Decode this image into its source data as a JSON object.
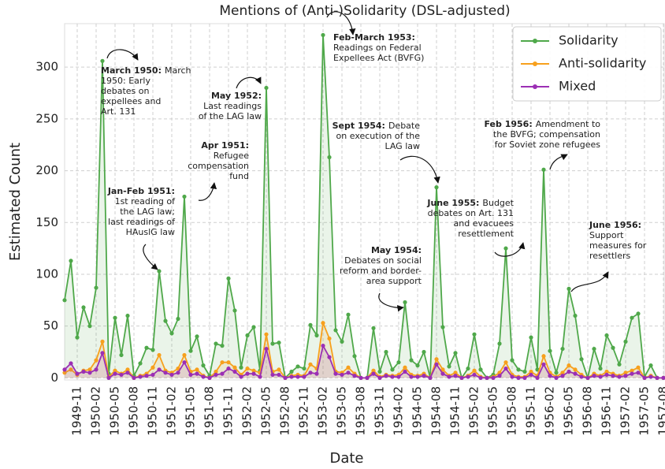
{
  "chart_data": {
    "type": "line",
    "title": "Mentions of (Anti-)Solidarity (DSL-adjusted)",
    "xlabel": "Date",
    "ylabel": "Estimated Count",
    "x": [
      "1949-09",
      "1949-10",
      "1949-11",
      "1949-12",
      "1950-01",
      "1950-02",
      "1950-03",
      "1950-04",
      "1950-05",
      "1950-06",
      "1950-07",
      "1950-08",
      "1950-09",
      "1950-10",
      "1950-11",
      "1950-12",
      "1951-01",
      "1951-02",
      "1951-03",
      "1951-04",
      "1951-05",
      "1951-06",
      "1951-07",
      "1951-08",
      "1951-09",
      "1951-10",
      "1951-11",
      "1951-12",
      "1952-01",
      "1952-02",
      "1952-03",
      "1952-04",
      "1952-05",
      "1952-06",
      "1952-07",
      "1952-08",
      "1952-09",
      "1952-10",
      "1952-11",
      "1952-12",
      "1953-01",
      "1953-02",
      "1953-03",
      "1953-04",
      "1953-05",
      "1953-06",
      "1953-07",
      "1953-08",
      "1953-09",
      "1953-10",
      "1953-11",
      "1953-12",
      "1954-01",
      "1954-02",
      "1954-03",
      "1954-04",
      "1954-05",
      "1954-06",
      "1954-07",
      "1954-08",
      "1954-09",
      "1954-10",
      "1954-11",
      "1954-12",
      "1955-01",
      "1955-02",
      "1955-03",
      "1955-04",
      "1955-05",
      "1955-06",
      "1955-07",
      "1955-08",
      "1955-09",
      "1955-10",
      "1955-11",
      "1955-12",
      "1956-01",
      "1956-02",
      "1956-03",
      "1956-04",
      "1956-05",
      "1956-06",
      "1956-07",
      "1956-08",
      "1956-09",
      "1956-10",
      "1956-11",
      "1956-12",
      "1957-01",
      "1957-02",
      "1957-03",
      "1957-04",
      "1957-05",
      "1957-06",
      "1957-07",
      "1957-08"
    ],
    "series": [
      {
        "name": "Solidarity",
        "color": "#4fa84a",
        "fill": true,
        "values": [
          75,
          113,
          39,
          68,
          50,
          87,
          306,
          4,
          58,
          22,
          60,
          2,
          14,
          29,
          27,
          103,
          55,
          43,
          57,
          175,
          26,
          40,
          12,
          2,
          33,
          31,
          96,
          65,
          10,
          41,
          49,
          7,
          280,
          33,
          34,
          0,
          6,
          11,
          9,
          51,
          41,
          331,
          213,
          46,
          35,
          61,
          21,
          0,
          0,
          48,
          6,
          25,
          8,
          15,
          73,
          17,
          12,
          25,
          0,
          184,
          49,
          11,
          24,
          0,
          9,
          42,
          8,
          0,
          3,
          33,
          125,
          17,
          8,
          6,
          39,
          8,
          201,
          26,
          5,
          28,
          86,
          60,
          18,
          0,
          28,
          9,
          41,
          29,
          13,
          35,
          58,
          62,
          1,
          12,
          0,
          0
        ]
      },
      {
        "name": "Anti-solidarity",
        "color": "#f7a01d",
        "fill": true,
        "values": [
          5,
          8,
          3,
          7,
          8,
          17,
          35,
          1,
          7,
          4,
          8,
          0,
          2,
          4,
          10,
          22,
          7,
          5,
          9,
          22,
          6,
          8,
          2,
          0,
          6,
          15,
          15,
          10,
          3,
          9,
          7,
          5,
          42,
          6,
          8,
          0,
          2,
          3,
          2,
          13,
          9,
          53,
          38,
          6,
          5,
          10,
          4,
          0,
          0,
          7,
          1,
          3,
          2,
          3,
          10,
          3,
          2,
          4,
          0,
          18,
          8,
          2,
          5,
          0,
          2,
          7,
          1,
          0,
          1,
          5,
          15,
          3,
          1,
          1,
          6,
          2,
          21,
          5,
          1,
          5,
          12,
          8,
          3,
          0,
          4,
          2,
          6,
          4,
          2,
          5,
          7,
          10,
          0,
          2,
          0,
          0
        ]
      },
      {
        "name": "Mixed",
        "color": "#9b2fb4",
        "fill": true,
        "values": [
          8,
          14,
          4,
          6,
          5,
          8,
          24,
          0,
          4,
          3,
          5,
          0,
          1,
          2,
          3,
          8,
          5,
          3,
          5,
          15,
          3,
          4,
          1,
          0,
          3,
          4,
          9,
          6,
          1,
          4,
          4,
          1,
          28,
          3,
          3,
          0,
          1,
          1,
          1,
          5,
          4,
          31,
          20,
          4,
          3,
          5,
          2,
          0,
          0,
          4,
          0,
          2,
          1,
          1,
          6,
          1,
          1,
          2,
          0,
          13,
          4,
          1,
          2,
          0,
          1,
          3,
          0,
          0,
          0,
          2,
          9,
          1,
          0,
          0,
          3,
          0,
          13,
          2,
          0,
          2,
          6,
          4,
          1,
          0,
          2,
          1,
          3,
          2,
          1,
          2,
          4,
          5,
          0,
          1,
          0,
          0
        ]
      }
    ],
    "xlim": [
      "1949-09",
      "1957-08"
    ],
    "xticks": [
      "1949-11",
      "1950-02",
      "1950-05",
      "1950-08",
      "1950-11",
      "1951-02",
      "1951-05",
      "1951-08",
      "1951-11",
      "1952-02",
      "1952-05",
      "1952-08",
      "1952-11",
      "1953-02",
      "1953-05",
      "1953-08",
      "1953-11",
      "1954-02",
      "1954-05",
      "1954-08",
      "1954-11",
      "1955-02",
      "1955-05",
      "1955-08",
      "1955-11",
      "1956-02",
      "1956-05",
      "1956-08",
      "1956-11",
      "1957-02",
      "1957-05",
      "1957-08"
    ],
    "ylim": [
      -2,
      342
    ],
    "yticks": [
      0,
      50,
      100,
      150,
      200,
      250,
      300
    ],
    "grid": true,
    "legend": "upper right",
    "annotations": [
      {
        "title": "March 1950:",
        "first": "March",
        "lines": [
          "1950: Early",
          "debates on",
          "expellees and",
          "Art. 131"
        ]
      },
      {
        "title": "May 1952:",
        "lines": [
          "Last readings",
          "of the LAG law"
        ]
      },
      {
        "title": "Feb-March 1953:",
        "lines": [
          "Readings on Federal",
          "Expellees Act (BVFG)"
        ]
      },
      {
        "title": "Apr 1951:",
        "lines": [
          "Refugee",
          "compensation",
          "fund"
        ]
      },
      {
        "title": "Jan-Feb 1951:",
        "lines": [
          "1st reading of",
          "the LAG law;",
          "last readings of",
          "HAuslG law"
        ]
      },
      {
        "title": "Sept 1954:",
        "first": "Debate",
        "lines": [
          "on execution of the",
          "LAG law"
        ]
      },
      {
        "title": "Feb 1956:",
        "first": "Amendment to",
        "lines": [
          "the BVFG; compensation",
          "for Soviet zone refugees"
        ]
      },
      {
        "title": "June 1955:",
        "first": "Budget",
        "lines": [
          "debates on Art. 131",
          "and evacuees",
          "resettlement"
        ]
      },
      {
        "title": "May 1954:",
        "lines": [
          "Debates on social",
          "reform and border-",
          "area support"
        ]
      },
      {
        "title": "June 1956:",
        "lines": [
          "Support",
          "measures for",
          "resettlers"
        ]
      }
    ]
  }
}
